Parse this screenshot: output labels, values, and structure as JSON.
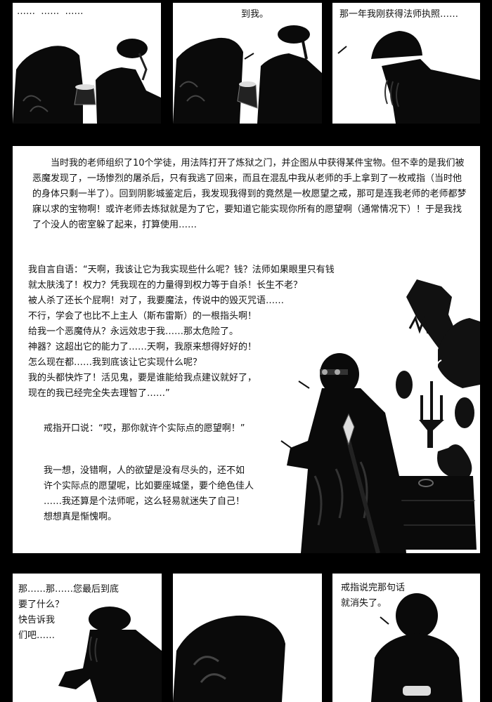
{
  "panels": {
    "p1": {
      "text": "……  ……  ……"
    },
    "p2": {
      "text": "到我。"
    },
    "p3": {
      "text": "那一年我刚获得法师执照……"
    },
    "p4": {
      "narration": "当时我的老师组织了10个学徒，用法阵打开了炼狱之门，并企图从中获得某件宝物。但不幸的是我们被恶魔发现了，一场惨烈的屠杀后，只有我逃了回来，而且在混乱中我从老师的手上拿到了一枚戒指（当时他的身体只剩一半了）。回到阴影城鉴定后，我发现我得到的竟然是一枚愿望之戒，那可是连我老师的老师都梦寐以求的宝物啊！或许老师去炼狱就是为了它，要知道它能实现你所有的愿望啊（通常情况下）！于是我找了个没人的密室躲了起来，打算使用……",
      "monologue": [
        "我自言自语：“天啊，我该让它为我实现些什么呢？钱？法师如果眼里只有钱",
        "就太肤浅了！权力？凭我现在的力量得到权力等于自杀！长生不老？",
        "被人杀了还长个屁啊！对了，我要魔法，传说中的毁灭咒语……",
        "不行，学会了也比不上主人（斯布雷斯）的一根指头啊！",
        "给我一个恶魔侍从？永远效忠于我……那太危险了。",
        "神器？这超出它的能力了……天啊，我原来想得好好的！",
        "怎么现在都……我到底该让它实现什么呢？",
        "我的头都快炸了！活见鬼，要是谁能给我点建议就好了，",
        "现在的我已经完全失去理智了……”"
      ],
      "ring_speech": "戒指开口说：“哎，那你就许个实际点的愿望啊！”",
      "reflection": [
        "我一想，没错啊，人的欲望是没有尽头的，还不如",
        "许个实际点的愿望呢，比如要座城堡，要个绝色佳人",
        "……我还算是个法师呢，这么轻易就迷失了自己！",
        "想想真是惭愧啊。"
      ]
    },
    "p5": {
      "lines": [
        "那……那……您最后到底",
        "要了什么？",
        "快告诉我",
        "们吧……"
      ]
    },
    "p6": {},
    "p7": {
      "lines": [
        "戒指说完那句话",
        "就消失了。"
      ]
    }
  }
}
